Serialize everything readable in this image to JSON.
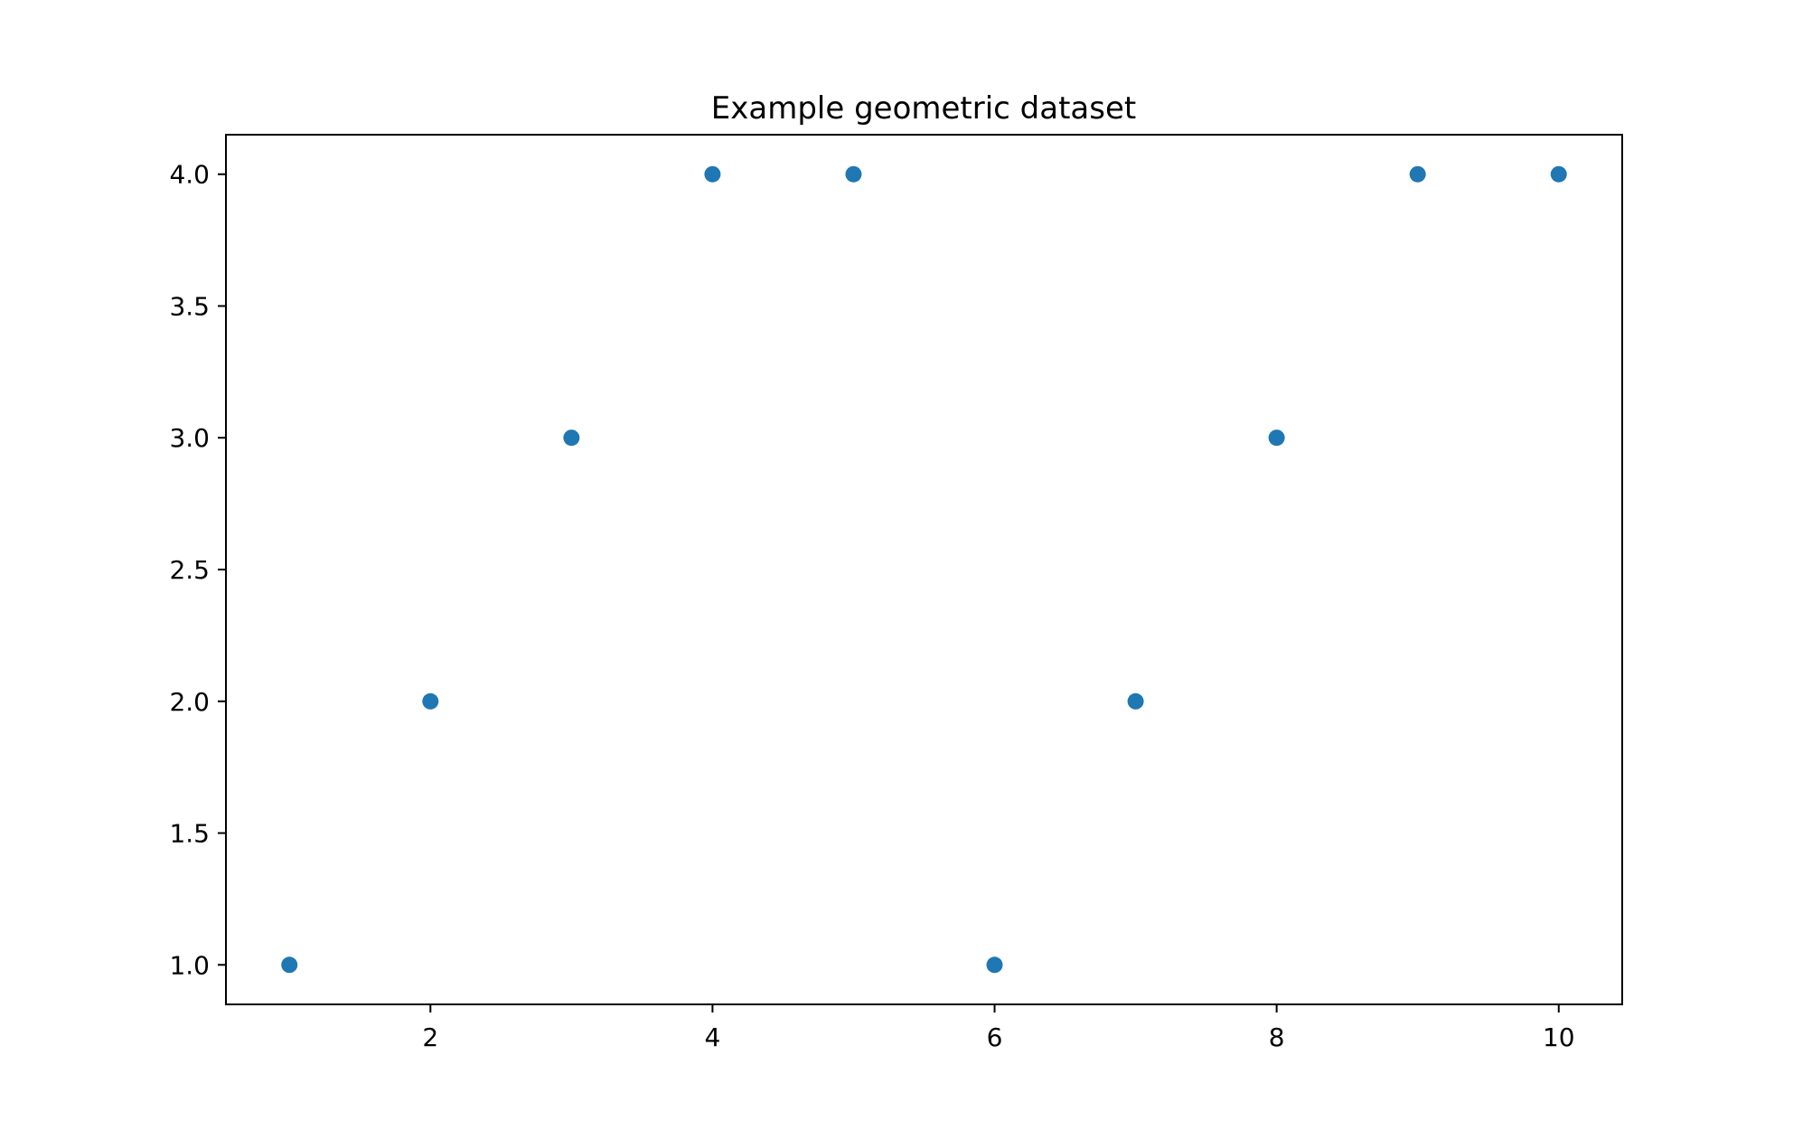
{
  "chart_data": {
    "type": "scatter",
    "title": "Example geometric dataset",
    "xlabel": "",
    "ylabel": "",
    "x": [
      1,
      2,
      3,
      4,
      5,
      6,
      7,
      8,
      9,
      10
    ],
    "y": [
      1,
      2,
      3,
      4,
      4,
      1,
      2,
      3,
      4,
      4
    ],
    "xlim": [
      0.55,
      10.45
    ],
    "ylim": [
      0.85,
      4.15
    ],
    "x_ticks": [
      2,
      4,
      6,
      8,
      10
    ],
    "x_tick_labels": [
      "2",
      "4",
      "6",
      "8",
      "10"
    ],
    "y_ticks": [
      1.0,
      1.5,
      2.0,
      2.5,
      3.0,
      3.5,
      4.0
    ],
    "y_tick_labels": [
      "1.0",
      "1.5",
      "2.0",
      "2.5",
      "3.0",
      "3.5",
      "4.0"
    ],
    "grid": false,
    "legend": "none",
    "marker_color": "#1f77b4"
  }
}
